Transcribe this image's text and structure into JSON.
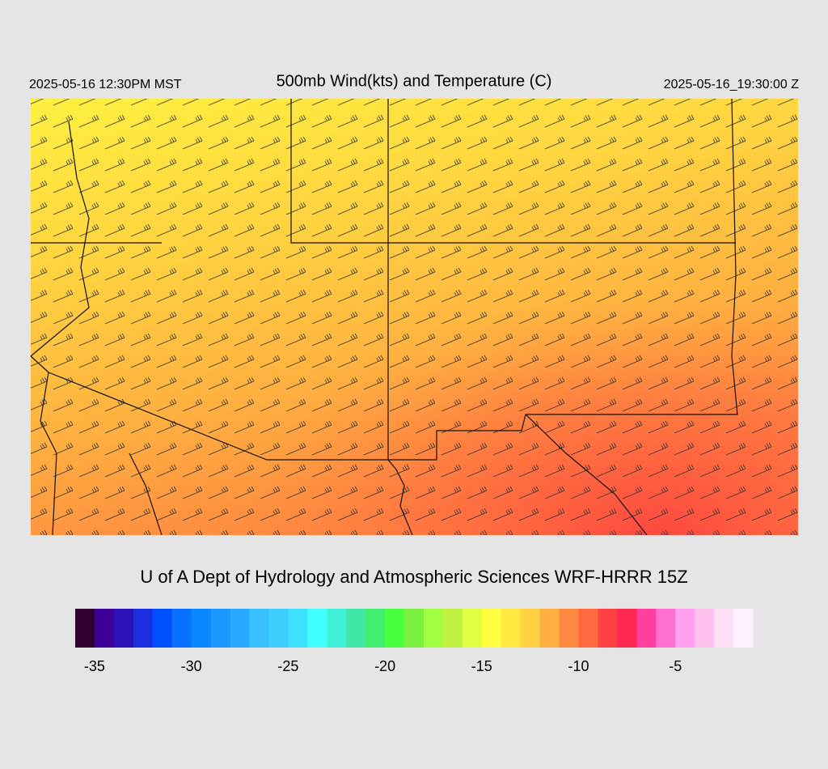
{
  "header": {
    "left": "2025-05-16 12:30PM MST",
    "title": "500mb Wind(kts) and Temperature (C)",
    "right": "2025-05-16_19:30:00 Z"
  },
  "footer": "U of A Dept of Hydrology and Atmospheric Sciences WRF-HRRR 15Z",
  "colorbar": {
    "range": [
      -36,
      -1
    ],
    "colors": [
      "#330033",
      "#3d0099",
      "#2a14b8",
      "#1a2ee0",
      "#0050ff",
      "#0a70ff",
      "#0a88ff",
      "#1a98ff",
      "#29aaff",
      "#38c0ff",
      "#3dd0ff",
      "#3de0ff",
      "#40ffff",
      "#40f0d8",
      "#40e8a8",
      "#40ee70",
      "#4aff40",
      "#7af040",
      "#a0ff40",
      "#c0f040",
      "#e0ff40",
      "#ffff40",
      "#ffe840",
      "#ffd040",
      "#ffb040",
      "#ff8840",
      "#ff6840",
      "#ff4040",
      "#ff2850",
      "#ff40a0",
      "#ff70d0",
      "#ffa0f0",
      "#ffc0f0",
      "#ffe0f8",
      "#fff0ff"
    ],
    "ticks": [
      -35,
      -30,
      -25,
      -20,
      -15,
      -10,
      -5
    ]
  }
}
